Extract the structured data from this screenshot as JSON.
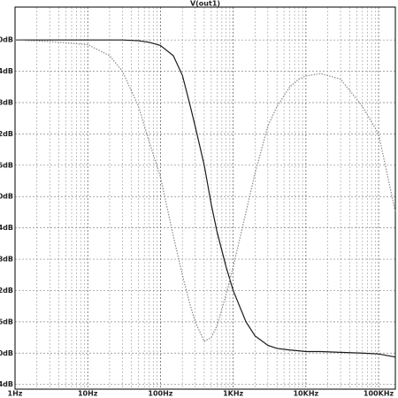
{
  "chart_data": {
    "type": "line",
    "title": "V(out1)",
    "xscale": "log",
    "grid": true,
    "x": [
      1,
      3,
      10,
      20,
      30,
      50,
      70,
      100,
      150,
      200,
      250,
      300,
      400,
      500,
      600,
      800,
      1000,
      1500,
      2000,
      3000,
      4000,
      6000,
      8000,
      10000,
      16000,
      30000,
      60000,
      100000,
      170000
    ],
    "series": [
      {
        "name": "solid",
        "color": "#1a1a1a",
        "dash": "none",
        "values": [
          0,
          0,
          0,
          0,
          0,
          -0.1,
          -0.3,
          -0.7,
          -2,
          -4.5,
          -8,
          -11,
          -16,
          -21,
          -24.5,
          -29,
          -32,
          -36,
          -37.8,
          -39,
          -39.4,
          -39.6,
          -39.7,
          -39.8,
          -39.8,
          -39.9,
          -40,
          -40.1,
          -40.5
        ]
      },
      {
        "name": "dotted",
        "color": "#8a8a8a",
        "dash": "1.5,1.5",
        "values": [
          0,
          -0.2,
          -0.6,
          -2,
          -4,
          -8.5,
          -13,
          -17.5,
          -25,
          -30,
          -33.5,
          -36,
          -38.5,
          -38,
          -36.5,
          -32.5,
          -29,
          -22,
          -17,
          -11,
          -8.5,
          -6,
          -5,
          -4.6,
          -4.3,
          -5,
          -8.5,
          -12,
          -22
        ]
      }
    ],
    "xlim": [
      1,
      170000
    ],
    "xticks": [
      {
        "value": 1,
        "label": "1Hz"
      },
      {
        "value": 10,
        "label": "10Hz"
      },
      {
        "value": 100,
        "label": "100Hz"
      },
      {
        "value": 1000,
        "label": "1KHz"
      },
      {
        "value": 10000,
        "label": "10KHz"
      },
      {
        "value": 100000,
        "label": "100KHz"
      }
    ],
    "ylim": [
      -44.6,
      4.2
    ],
    "yticks": [
      {
        "value": 0,
        "label": "0dB"
      },
      {
        "value": -4,
        "label": "4dB"
      },
      {
        "value": -8,
        "label": "8dB"
      },
      {
        "value": -12,
        "label": "2dB"
      },
      {
        "value": -16,
        "label": "6dB"
      },
      {
        "value": -20,
        "label": "0dB"
      },
      {
        "value": -24,
        "label": "4dB"
      },
      {
        "value": -28,
        "label": "8dB"
      },
      {
        "value": -32,
        "label": "2dB"
      },
      {
        "value": -36,
        "label": "6dB"
      },
      {
        "value": -40,
        "label": "0dB"
      },
      {
        "value": -44,
        "label": "4dB"
      }
    ]
  }
}
